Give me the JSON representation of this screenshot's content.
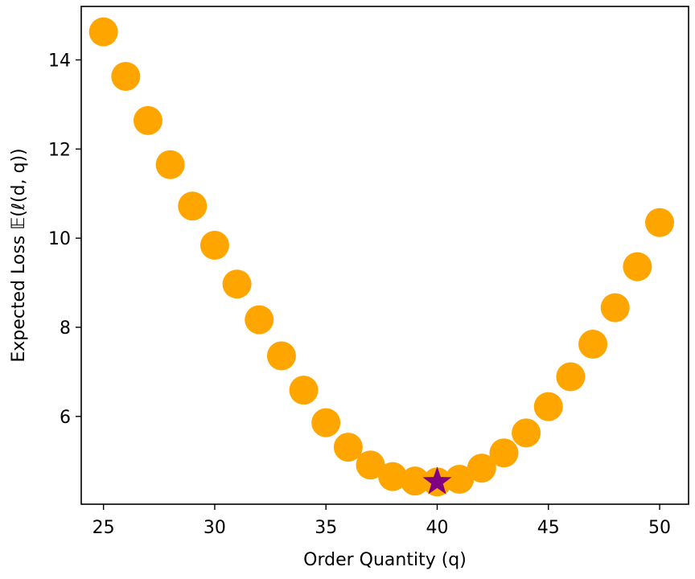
{
  "chart_data": {
    "type": "scatter",
    "xlabel": "Order Quantity (q)",
    "ylabel": "Expected Loss 𝔼(ℓ(d, q))",
    "xlim": [
      24,
      51.3
    ],
    "ylim": [
      4.03,
      15.2
    ],
    "x_ticks": [
      25,
      30,
      35,
      40,
      45,
      50
    ],
    "y_ticks": [
      6,
      8,
      10,
      12,
      14
    ],
    "grid": false,
    "series": [
      {
        "marker": "circle",
        "color": "#FFA500",
        "x": [
          25,
          26,
          27,
          28,
          29,
          30,
          31,
          32,
          33,
          34,
          35,
          36,
          37,
          38,
          39,
          40,
          41,
          42,
          43,
          44,
          45,
          46,
          47,
          48,
          49,
          50
        ],
        "y": [
          14.63,
          13.63,
          12.64,
          11.65,
          10.72,
          9.84,
          8.97,
          8.17,
          7.36,
          6.59,
          5.86,
          5.31,
          4.91,
          4.65,
          4.55,
          4.53,
          4.59,
          4.84,
          5.18,
          5.63,
          6.22,
          6.89,
          7.62,
          8.44,
          9.36,
          10.35
        ]
      },
      {
        "marker": "star",
        "color": "#800080",
        "x": [
          40
        ],
        "y": [
          4.53
        ]
      }
    ]
  }
}
